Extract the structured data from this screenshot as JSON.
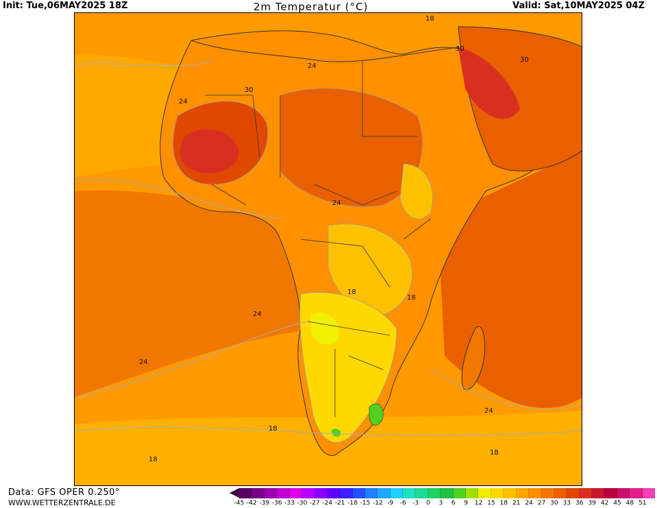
{
  "header": {
    "init": "Init: Tue,06MAY2025 18Z",
    "title": "2m Temperatur (°C)",
    "valid": "Valid: Sat,10MAY2025 04Z"
  },
  "map": {
    "region": "Africa",
    "isotherm_labels": [
      "18",
      "30",
      "30",
      "24",
      "24",
      "30",
      "24",
      "18",
      "18",
      "24",
      "24",
      "24",
      "18",
      "18",
      "18"
    ]
  },
  "footer": {
    "source": "Data: GFS OPER 0.250°",
    "site": "WWW.WETTERZENTRALE.DE"
  },
  "legend": {
    "labels": [
      "-45",
      "-42",
      "-39",
      "-36",
      "-33",
      "-30",
      "-27",
      "-24",
      "-21",
      "-18",
      "-15",
      "-12",
      "-9",
      "-6",
      "-3",
      "0",
      "3",
      "6",
      "9",
      "12",
      "15",
      "18",
      "21",
      "24",
      "27",
      "30",
      "33",
      "36",
      "39",
      "42",
      "45",
      "48",
      "51"
    ],
    "colors": [
      "#5a0060",
      "#7a008a",
      "#9d00b0",
      "#c000d0",
      "#e000e8",
      "#b400ff",
      "#8a00ff",
      "#6000ff",
      "#3a20ff",
      "#2050ff",
      "#2080ff",
      "#20a8ff",
      "#20d0ff",
      "#20e0c0",
      "#20d890",
      "#20d060",
      "#20c040",
      "#50d020",
      "#a0e000",
      "#f0f000",
      "#ffd800",
      "#ffc000",
      "#ffa800",
      "#ff9000",
      "#f07800",
      "#e86000",
      "#e04800",
      "#d83020",
      "#c81830",
      "#b80040",
      "#c8106a",
      "#e0208a",
      "#f040b0"
    ],
    "arrow_low": "#3a0040",
    "arrow_high": "#ff40c0"
  }
}
